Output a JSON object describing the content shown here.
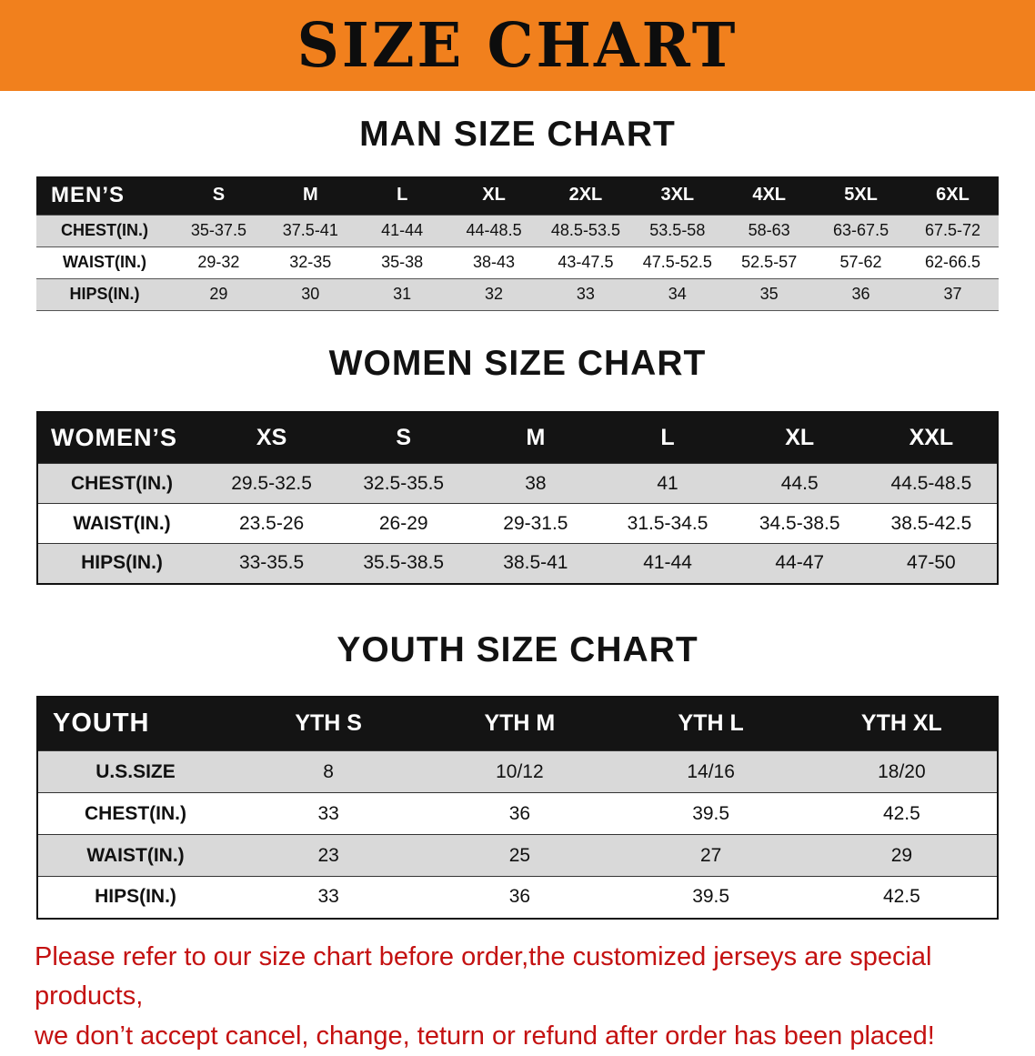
{
  "banner": {
    "title": "SIZE CHART",
    "bg_color": "#f1801d",
    "text_color": "#0d0d0d"
  },
  "colors": {
    "table_header_bg": "#141414",
    "table_header_text": "#ffffff",
    "row_stripe": "#d9d9d9",
    "footer_text": "#c41111"
  },
  "sections": [
    {
      "heading": "MAN SIZE CHART",
      "table": {
        "header": [
          "MEN’S",
          "S",
          "M",
          "L",
          "XL",
          "2XL",
          "3XL",
          "4XL",
          "5XL",
          "6XL"
        ],
        "rows": [
          [
            "CHEST(IN.)",
            "35-37.5",
            "37.5-41",
            "41-44",
            "44-48.5",
            "48.5-53.5",
            "53.5-58",
            "58-63",
            "63-67.5",
            "67.5-72"
          ],
          [
            "WAIST(IN.)",
            "29-32",
            "32-35",
            "35-38",
            "38-43",
            "43-47.5",
            "47.5-52.5",
            "52.5-57",
            "57-62",
            "62-66.5"
          ],
          [
            "HIPS(IN.)",
            "29",
            "30",
            "31",
            "32",
            "33",
            "34",
            "35",
            "36",
            "37"
          ]
        ]
      }
    },
    {
      "heading": "WOMEN SIZE CHART",
      "table": {
        "header": [
          "WOMEN’S",
          "XS",
          "S",
          "M",
          "L",
          "XL",
          "XXL"
        ],
        "rows": [
          [
            "CHEST(IN.)",
            "29.5-32.5",
            "32.5-35.5",
            "38",
            "41",
            "44.5",
            "44.5-48.5"
          ],
          [
            "WAIST(IN.)",
            "23.5-26",
            "26-29",
            "29-31.5",
            "31.5-34.5",
            "34.5-38.5",
            "38.5-42.5"
          ],
          [
            "HIPS(IN.)",
            "33-35.5",
            "35.5-38.5",
            "38.5-41",
            "41-44",
            "44-47",
            "47-50"
          ]
        ]
      }
    },
    {
      "heading": "YOUTH SIZE CHART",
      "table": {
        "header": [
          "YOUTH",
          "YTH S",
          "YTH M",
          "YTH L",
          "YTH XL"
        ],
        "rows": [
          [
            "U.S.SIZE",
            "8",
            "10/12",
            "14/16",
            "18/20"
          ],
          [
            "CHEST(IN.)",
            "33",
            "36",
            "39.5",
            "42.5"
          ],
          [
            "WAIST(IN.)",
            "23",
            "25",
            "27",
            "29"
          ],
          [
            "HIPS(IN.)",
            "33",
            "36",
            "39.5",
            "42.5"
          ]
        ]
      }
    }
  ],
  "footer": {
    "line1": "Please refer to our size chart before order,the customized jerseys are special products,",
    "line2": "we don’t accept cancel, change, teturn or refund after order has been placed!"
  }
}
